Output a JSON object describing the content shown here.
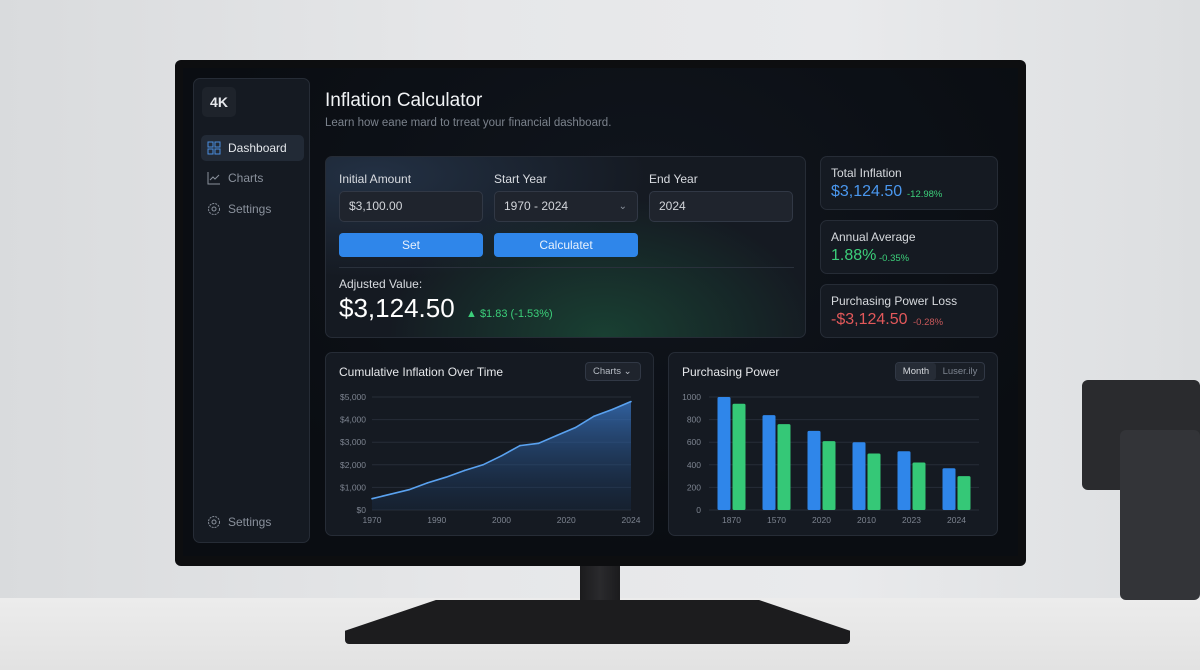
{
  "app": {
    "logo": "4K",
    "title": "Inflation Calculator",
    "subtitle": "Learn how eane mard to trreat your financial dashboard."
  },
  "sidebar": {
    "items": [
      {
        "label": "Dashboard",
        "icon": "dashboard-grid-icon",
        "active": true
      },
      {
        "label": "Charts",
        "icon": "line-chart-icon"
      },
      {
        "label": "Settings",
        "icon": "gear-icon"
      }
    ],
    "footer": {
      "label": "Settings",
      "icon": "gear-icon"
    }
  },
  "calculator": {
    "initial_amount": {
      "label": "Initial Amount",
      "value": "$3,100.00"
    },
    "start_year": {
      "label": "Start Year",
      "value": "1970 - 2024"
    },
    "end_year": {
      "label": "End Year",
      "value": "2024"
    },
    "set_label": "Set",
    "calculate_label": "Calculatet",
    "adjusted_label": "Adjusted Value:",
    "adjusted_value": "$3,124.50",
    "adjusted_change": "▲ $1.83 (-1.53%)"
  },
  "stats": [
    {
      "label": "Total Inflation",
      "value": "$3,124.50",
      "delta": "-12.98%",
      "color": "#4a97ee"
    },
    {
      "label": "Annual Average",
      "value": "1.88%",
      "delta": "-0.35%",
      "color": "#3ccf7a"
    },
    {
      "label": "Purchasing Power Loss",
      "value": "-$3,124.50",
      "delta": "-0.28%",
      "color": "#e2585a"
    }
  ],
  "colors": {
    "accent": "#2f86ea",
    "positive": "#3ccf7a",
    "negative": "#e2585a",
    "bar_green": "#35c877"
  },
  "chart_data": [
    {
      "type": "area",
      "title": "Cumulative Inflation Over Time",
      "dropdown": "Charts",
      "x_ticks": [
        "1970",
        "1990",
        "2000",
        "2020",
        "2024"
      ],
      "y_ticks": [
        "$0",
        "$1,000",
        "$2,000",
        "$3,000",
        "$4,000",
        "$5,000"
      ],
      "ylim": [
        0,
        5000
      ],
      "grid": true,
      "values": [
        500,
        700,
        900,
        1200,
        1450,
        1750,
        2000,
        2400,
        2850,
        2950,
        3300,
        3650,
        4150,
        4450,
        4800
      ]
    },
    {
      "type": "bar",
      "title": "Purchasing Power",
      "toggle": [
        "Month",
        "Luser.ily"
      ],
      "categories": [
        "1870",
        "1570",
        "2020",
        "2010",
        "2023",
        "2024"
      ],
      "y_ticks": [
        "0",
        "200",
        "400",
        "600",
        "800",
        "1000"
      ],
      "ylim": [
        0,
        1000
      ],
      "grid": true,
      "series": [
        {
          "values": [
            1000,
            840,
            700,
            600,
            520,
            370
          ],
          "color": "#2f86ea"
        },
        {
          "values": [
            940,
            760,
            610,
            500,
            420,
            300
          ],
          "color": "#35c877"
        }
      ]
    }
  ]
}
